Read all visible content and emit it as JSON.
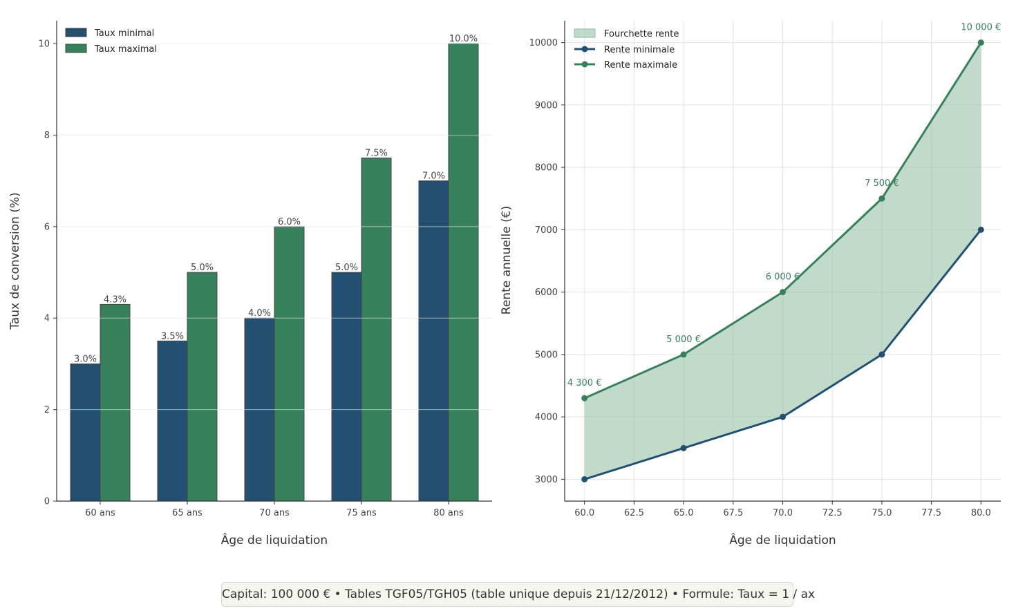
{
  "chart_data": [
    {
      "type": "bar",
      "title": "",
      "xlabel": "Âge de liquidation",
      "ylabel": "Taux de conversion (%)",
      "categories": [
        "60 ans",
        "65 ans",
        "70 ans",
        "75 ans",
        "80 ans"
      ],
      "series": [
        {
          "name": "Taux minimal",
          "values": [
            3.0,
            3.5,
            4.0,
            5.0,
            7.0
          ],
          "color": "#234f70",
          "labels": [
            "3.0%",
            "3.5%",
            "4.0%",
            "5.0%",
            "7.0%"
          ]
        },
        {
          "name": "Taux maximal",
          "values": [
            4.3,
            5.0,
            6.0,
            7.5,
            10.0
          ],
          "color": "#37805c",
          "labels": [
            "4.3%",
            "5.0%",
            "6.0%",
            "7.5%",
            "10.0%"
          ]
        }
      ],
      "ylim": [
        0,
        10.5
      ],
      "yticks": [
        0,
        2,
        4,
        6,
        8,
        10
      ],
      "legend": "top-left",
      "grid": "y"
    },
    {
      "type": "line",
      "title": "",
      "xlabel": "Âge de liquidation",
      "ylabel": "Rente annuelle (€)",
      "x": [
        60,
        65,
        70,
        75,
        80
      ],
      "series": [
        {
          "name": "Rente minimale",
          "values": [
            3000,
            3500,
            4000,
            5000,
            7000
          ],
          "color": "#234f70"
        },
        {
          "name": "Rente maximale",
          "values": [
            4300,
            5000,
            6000,
            7500,
            10000
          ],
          "color": "#37805c",
          "labels": [
            "4 300 €",
            "5 000 €",
            "6 000 €",
            "7 500 €",
            "10 000 €"
          ]
        }
      ],
      "fill": {
        "name": "Fourchette rente",
        "color": "#8fbba3"
      },
      "xlim": [
        59,
        81
      ],
      "ylim": [
        2650,
        10350
      ],
      "xticks": [
        "60.0",
        "62.5",
        "65.0",
        "67.5",
        "70.0",
        "72.5",
        "75.0",
        "77.5",
        "80.0"
      ],
      "yticks": [
        3000,
        4000,
        5000,
        6000,
        7000,
        8000,
        9000,
        10000
      ],
      "legend": "top-left",
      "grid": "both"
    }
  ],
  "footnote": "Capital: 100 000 € • Tables TGF05/TGH05 (table unique depuis 21/12/2012) • Formule: Taux = 1 / ax"
}
